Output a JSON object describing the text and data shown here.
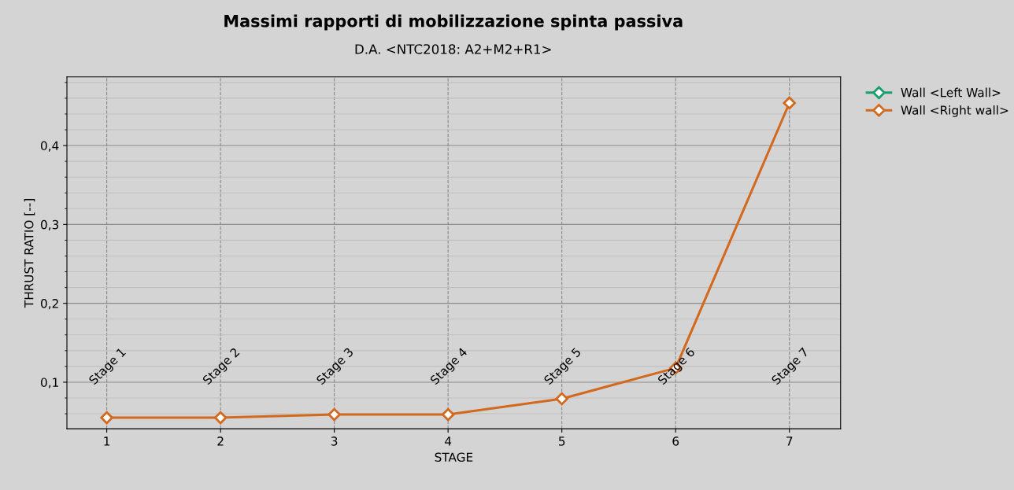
{
  "chart_data": {
    "type": "line",
    "title": "Massimi rapporti di mobilizzazione spinta passiva",
    "subtitle": "D.A. <NTC2018: A2+M2+R1>",
    "xlabel": "STAGE",
    "ylabel": "THRUST RATIO [--]",
    "x": [
      1,
      2,
      3,
      4,
      5,
      6,
      7
    ],
    "series": [
      {
        "name": "Wall <Left Wall>",
        "color": "#1a9e6e",
        "values": [
          null,
          null,
          null,
          null,
          null,
          null,
          null
        ]
      },
      {
        "name": "Wall <Right wall>",
        "color": "#d2691e",
        "values": [
          0.055,
          0.055,
          0.059,
          0.059,
          0.079,
          0.118,
          0.454
        ]
      }
    ],
    "xlim": [
      0.65,
      7.45
    ],
    "xticks": [
      1,
      2,
      3,
      4,
      5,
      6,
      7
    ],
    "ylim": [
      0.041,
      0.487
    ],
    "yticks": [
      {
        "value": 0.1,
        "label": "0,1"
      },
      {
        "value": 0.2,
        "label": "0,2"
      },
      {
        "value": 0.3,
        "label": "0,3"
      },
      {
        "value": 0.4,
        "label": "0,4"
      }
    ],
    "annotations": [
      "Stage 1",
      "Stage 2",
      "Stage 3",
      "Stage 4",
      "Stage 5",
      "Stage 6",
      "Stage 7"
    ],
    "grid": true,
    "legend": "top right",
    "marker": "diamond",
    "line_style": "solid"
  }
}
